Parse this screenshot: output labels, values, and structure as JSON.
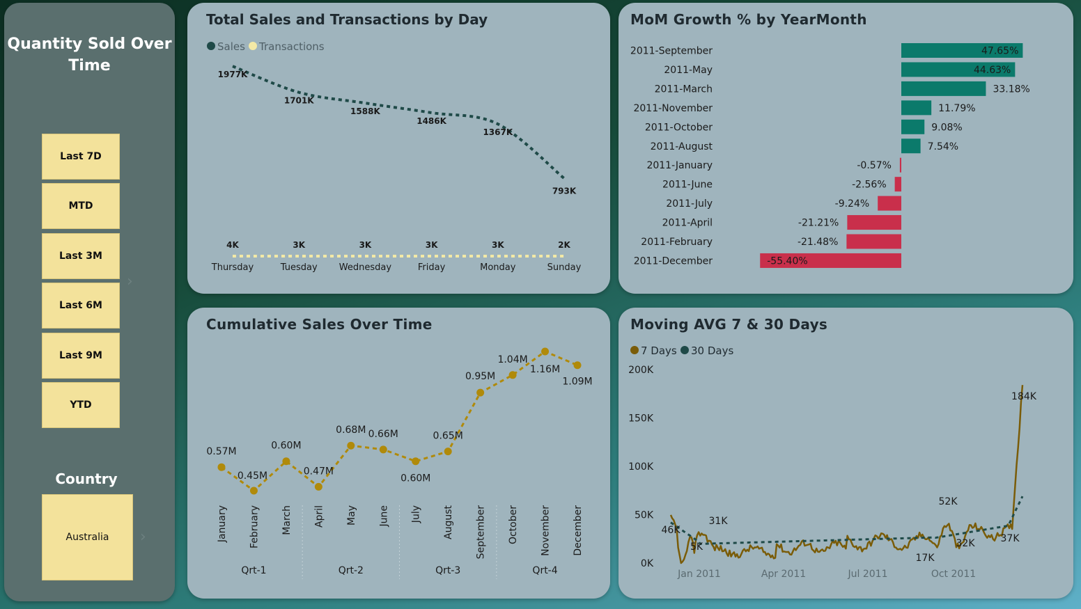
{
  "sidebar": {
    "title": "Quantity Sold Over Time",
    "buttons": [
      "Last 7D",
      "MTD",
      "Last 3M",
      "Last 6M",
      "Last 9M",
      "YTD"
    ],
    "country_label": "Country",
    "country_value": "Australia",
    "colors": {
      "panel": "#5a6f6e",
      "button": "#f3e29b"
    }
  },
  "chart_data": [
    {
      "id": "sales_by_day",
      "type": "line",
      "title": "Total Sales and Transactions by Day",
      "categories": [
        "Thursday",
        "Tuesday",
        "Wednesday",
        "Friday",
        "Monday",
        "Sunday"
      ],
      "series": [
        {
          "name": "Sales",
          "color": "#1f4a48",
          "values": [
            1977,
            1701,
            1588,
            1486,
            1367,
            793
          ],
          "labels": [
            "1977K",
            "1701K",
            "1588K",
            "1486K",
            "1367K",
            "793K"
          ]
        },
        {
          "name": "Transactions",
          "color": "#f3e9a6",
          "values": [
            4,
            3,
            3,
            3,
            3,
            2
          ],
          "labels": [
            "4K",
            "3K",
            "3K",
            "3K",
            "3K",
            "2K"
          ]
        }
      ]
    },
    {
      "id": "mom_growth",
      "type": "bar",
      "orientation": "horizontal",
      "title": "MoM Growth % by YearMonth",
      "categories": [
        "2011-September",
        "2011-May",
        "2011-March",
        "2011-November",
        "2011-October",
        "2011-August",
        "2011-January",
        "2011-June",
        "2011-July",
        "2011-April",
        "2011-February",
        "2011-December"
      ],
      "values": [
        47.65,
        44.63,
        33.18,
        11.79,
        9.08,
        7.54,
        -0.57,
        -2.56,
        -9.24,
        -21.21,
        -21.48,
        -55.4
      ],
      "labels": [
        "47.65%",
        "44.63%",
        "33.18%",
        "11.79%",
        "9.08%",
        "7.54%",
        "-0.57%",
        "-2.56%",
        "-9.24%",
        "-21.21%",
        "-21.48%",
        "-55.40%"
      ],
      "colors": {
        "positive": "#0b7a6b",
        "negative": "#c92f4b"
      }
    },
    {
      "id": "cumulative_sales",
      "type": "line",
      "title": "Cumulative Sales Over Time",
      "categories": [
        "January",
        "February",
        "March",
        "April",
        "May",
        "June",
        "July",
        "August",
        "September",
        "October",
        "November",
        "December"
      ],
      "values": [
        0.57,
        0.45,
        0.6,
        0.47,
        0.68,
        0.66,
        0.6,
        0.65,
        0.95,
        1.04,
        1.16,
        1.09
      ],
      "labels": [
        "0.57M",
        "0.45M",
        "0.60M",
        "0.47M",
        "0.68M",
        "0.66M",
        "0.60M",
        "0.65M",
        "0.95M",
        "1.04M",
        "1.16M",
        "1.09M"
      ],
      "quarters": [
        "Qrt-1",
        "Qrt-2",
        "Qrt-3",
        "Qrt-4"
      ],
      "color": "#b08a0a"
    },
    {
      "id": "moving_avg",
      "type": "line",
      "title": "Moving AVG 7 & 30 Days",
      "series_names": [
        "7 Days",
        "30 Days"
      ],
      "colors": {
        "7 Days": "#7a5c08",
        "30 Days": "#1f4a48"
      },
      "y_ticks": [
        "200K",
        "150K",
        "100K",
        "50K",
        "0K"
      ],
      "ylim": [
        0,
        200
      ],
      "x_ticks": [
        "Jan 2011",
        "Apr 2011",
        "Jul 2011",
        "Oct 2011"
      ],
      "annotations": [
        "46K",
        "5K",
        "31K",
        "52K",
        "17K",
        "32K",
        "37K",
        "184K"
      ]
    }
  ]
}
